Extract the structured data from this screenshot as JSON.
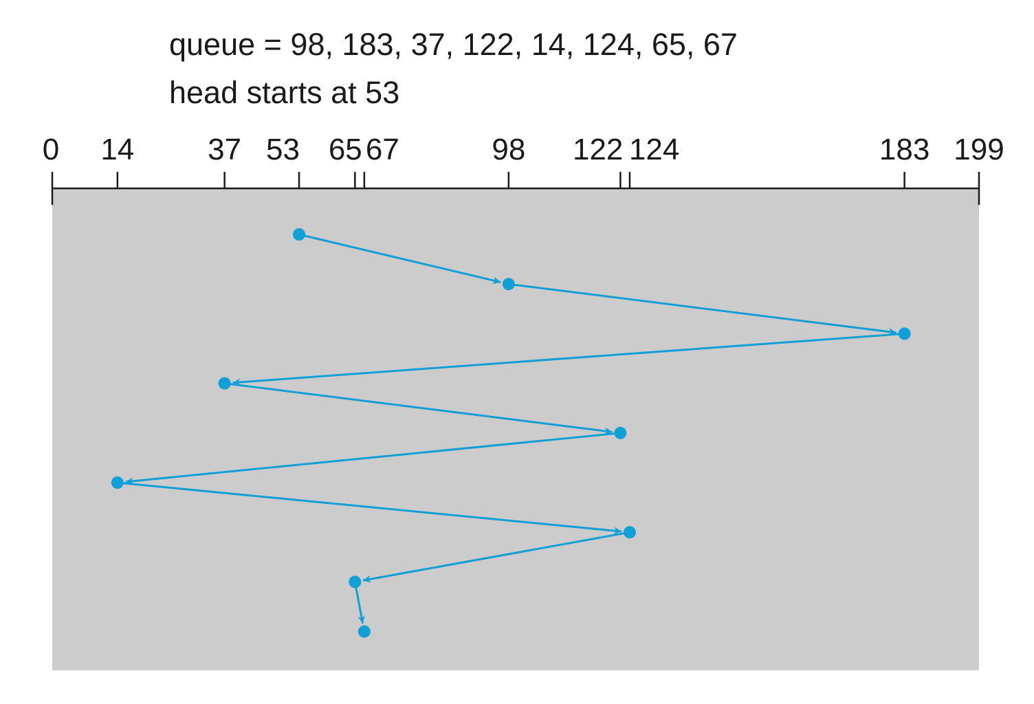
{
  "caption": {
    "queue_line": "queue = 98, 183, 37, 122, 14, 124, 65, 67",
    "head_line": "head starts at 53"
  },
  "axis": {
    "min": 0,
    "max": 199,
    "ticks": [
      "0",
      "14",
      "37",
      "53",
      "65",
      "67",
      "98",
      "122",
      "124",
      "183",
      "199"
    ]
  },
  "path": {
    "order": [
      53,
      98,
      183,
      37,
      122,
      14,
      124,
      65,
      67
    ]
  },
  "colors": {
    "panel": "#cccccc",
    "path": "#119fd6",
    "axis": "#1a1a1a"
  }
}
